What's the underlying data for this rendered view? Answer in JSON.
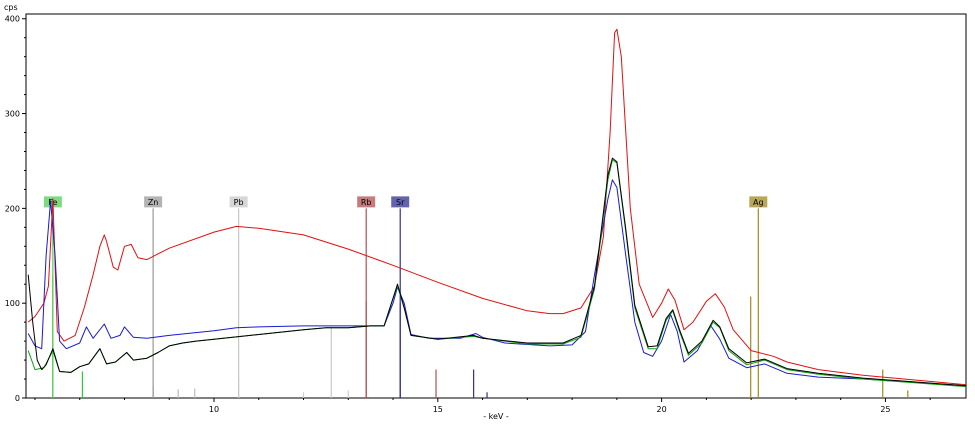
{
  "chart_data": {
    "type": "line",
    "ylabel": "cps",
    "xlabel": "- keV -",
    "xlim": [
      5.8,
      26.8
    ],
    "ylim": [
      0,
      405
    ],
    "grid": false,
    "x_ticks": [
      10,
      15,
      20,
      25
    ],
    "y_ticks": [
      0,
      100,
      200,
      300,
      400
    ],
    "series": [
      {
        "color": "#e01010",
        "points": [
          [
            5.85,
            80
          ],
          [
            6.0,
            86
          ],
          [
            6.2,
            100
          ],
          [
            6.3,
            118
          ],
          [
            6.4,
            210
          ],
          [
            6.5,
            70
          ],
          [
            6.65,
            60
          ],
          [
            6.9,
            66
          ],
          [
            7.1,
            95
          ],
          [
            7.3,
            130
          ],
          [
            7.45,
            160
          ],
          [
            7.55,
            172
          ],
          [
            7.6,
            165
          ],
          [
            7.75,
            138
          ],
          [
            7.85,
            135
          ],
          [
            8.0,
            160
          ],
          [
            8.15,
            162
          ],
          [
            8.3,
            148
          ],
          [
            8.5,
            146
          ],
          [
            9.0,
            158
          ],
          [
            10.0,
            175
          ],
          [
            10.5,
            181
          ],
          [
            11.0,
            179
          ],
          [
            12.0,
            172
          ],
          [
            13.0,
            157
          ],
          [
            14.0,
            140
          ],
          [
            15.0,
            122
          ],
          [
            16.0,
            105
          ],
          [
            17.0,
            92
          ],
          [
            17.5,
            89
          ],
          [
            17.8,
            89
          ],
          [
            18.2,
            95
          ],
          [
            18.5,
            118
          ],
          [
            18.7,
            170
          ],
          [
            18.85,
            280
          ],
          [
            18.95,
            385
          ],
          [
            19.0,
            389
          ],
          [
            19.1,
            360
          ],
          [
            19.3,
            200
          ],
          [
            19.5,
            120
          ],
          [
            19.8,
            85
          ],
          [
            20.0,
            100
          ],
          [
            20.15,
            115
          ],
          [
            20.3,
            103
          ],
          [
            20.5,
            72
          ],
          [
            20.7,
            80
          ],
          [
            21.0,
            102
          ],
          [
            21.2,
            110
          ],
          [
            21.4,
            96
          ],
          [
            21.6,
            72
          ],
          [
            22.0,
            50
          ],
          [
            22.5,
            44
          ],
          [
            22.8,
            38
          ],
          [
            23.5,
            30
          ],
          [
            24.5,
            24
          ],
          [
            26.8,
            14
          ]
        ]
      },
      {
        "color": "#1a1ad0",
        "points": [
          [
            5.85,
            68
          ],
          [
            6.0,
            55
          ],
          [
            6.15,
            52
          ],
          [
            6.25,
            150
          ],
          [
            6.35,
            208
          ],
          [
            6.45,
            150
          ],
          [
            6.55,
            60
          ],
          [
            6.7,
            52
          ],
          [
            7.0,
            58
          ],
          [
            7.15,
            75
          ],
          [
            7.3,
            63
          ],
          [
            7.55,
            78
          ],
          [
            7.7,
            63
          ],
          [
            7.9,
            66
          ],
          [
            8.0,
            75
          ],
          [
            8.2,
            64
          ],
          [
            8.5,
            63
          ],
          [
            9.0,
            66
          ],
          [
            10.0,
            71
          ],
          [
            10.5,
            74
          ],
          [
            11.0,
            75
          ],
          [
            12.0,
            76
          ],
          [
            13.0,
            76
          ],
          [
            13.5,
            76
          ],
          [
            13.8,
            76
          ],
          [
            14.0,
            100
          ],
          [
            14.1,
            117
          ],
          [
            14.25,
            100
          ],
          [
            14.4,
            67
          ],
          [
            14.8,
            63
          ],
          [
            15.5,
            63
          ],
          [
            15.85,
            68
          ],
          [
            16.0,
            64
          ],
          [
            16.5,
            58
          ],
          [
            17.5,
            55
          ],
          [
            18.0,
            56
          ],
          [
            18.3,
            70
          ],
          [
            18.5,
            130
          ],
          [
            18.8,
            210
          ],
          [
            18.9,
            230
          ],
          [
            19.0,
            222
          ],
          [
            19.2,
            150
          ],
          [
            19.4,
            80
          ],
          [
            19.6,
            48
          ],
          [
            19.8,
            44
          ],
          [
            20.0,
            60
          ],
          [
            20.2,
            88
          ],
          [
            20.35,
            70
          ],
          [
            20.5,
            38
          ],
          [
            20.8,
            50
          ],
          [
            21.1,
            76
          ],
          [
            21.3,
            62
          ],
          [
            21.5,
            42
          ],
          [
            21.9,
            32
          ],
          [
            22.3,
            36
          ],
          [
            22.8,
            26
          ],
          [
            23.5,
            22
          ],
          [
            24.5,
            20
          ],
          [
            26.8,
            13
          ]
        ]
      },
      {
        "color": "#10a010",
        "points": [
          [
            5.85,
            50
          ],
          [
            6.0,
            30
          ],
          [
            6.2,
            32
          ],
          [
            6.4,
            50
          ],
          [
            6.55,
            28
          ],
          [
            6.8,
            27
          ],
          [
            7.0,
            33
          ],
          [
            7.2,
            36
          ],
          [
            7.45,
            52
          ],
          [
            7.6,
            36
          ],
          [
            7.8,
            38
          ],
          [
            8.05,
            48
          ],
          [
            8.2,
            40
          ],
          [
            8.5,
            42
          ],
          [
            8.75,
            48
          ],
          [
            9.0,
            55
          ],
          [
            9.3,
            58
          ],
          [
            9.6,
            60
          ],
          [
            10.0,
            62
          ],
          [
            11.0,
            67
          ],
          [
            12.0,
            72
          ],
          [
            12.5,
            74
          ],
          [
            13.0,
            74
          ],
          [
            13.5,
            76
          ],
          [
            13.8,
            76
          ],
          [
            14.0,
            105
          ],
          [
            14.1,
            118
          ],
          [
            14.25,
            95
          ],
          [
            14.4,
            66
          ],
          [
            15.0,
            62
          ],
          [
            15.8,
            65
          ],
          [
            16.0,
            63
          ],
          [
            17.0,
            57
          ],
          [
            17.8,
            57
          ],
          [
            18.2,
            64
          ],
          [
            18.5,
            115
          ],
          [
            18.8,
            230
          ],
          [
            18.9,
            251
          ],
          [
            19.0,
            248
          ],
          [
            19.2,
            175
          ],
          [
            19.4,
            95
          ],
          [
            19.7,
            52
          ],
          [
            19.9,
            52
          ],
          [
            20.1,
            82
          ],
          [
            20.25,
            92
          ],
          [
            20.4,
            70
          ],
          [
            20.6,
            45
          ],
          [
            20.9,
            58
          ],
          [
            21.15,
            80
          ],
          [
            21.3,
            74
          ],
          [
            21.5,
            50
          ],
          [
            21.9,
            35
          ],
          [
            22.3,
            40
          ],
          [
            22.8,
            30
          ],
          [
            23.5,
            25
          ],
          [
            24.5,
            20
          ],
          [
            26.8,
            12
          ]
        ]
      },
      {
        "color": "#000000",
        "points": [
          [
            5.85,
            130
          ],
          [
            5.95,
            80
          ],
          [
            6.05,
            40
          ],
          [
            6.15,
            30
          ],
          [
            6.25,
            35
          ],
          [
            6.4,
            52
          ],
          [
            6.55,
            28
          ],
          [
            6.8,
            27
          ],
          [
            7.0,
            33
          ],
          [
            7.2,
            36
          ],
          [
            7.45,
            52
          ],
          [
            7.6,
            36
          ],
          [
            7.8,
            38
          ],
          [
            8.05,
            48
          ],
          [
            8.2,
            40
          ],
          [
            8.5,
            42
          ],
          [
            8.75,
            48
          ],
          [
            9.0,
            55
          ],
          [
            9.3,
            58
          ],
          [
            9.6,
            60
          ],
          [
            10.0,
            62
          ],
          [
            11.0,
            67
          ],
          [
            12.0,
            72
          ],
          [
            12.5,
            74
          ],
          [
            13.0,
            74
          ],
          [
            13.5,
            76
          ],
          [
            13.8,
            76
          ],
          [
            14.0,
            105
          ],
          [
            14.1,
            120
          ],
          [
            14.25,
            95
          ],
          [
            14.4,
            66
          ],
          [
            15.0,
            62
          ],
          [
            15.8,
            66
          ],
          [
            16.0,
            63
          ],
          [
            17.0,
            58
          ],
          [
            17.8,
            58
          ],
          [
            18.2,
            66
          ],
          [
            18.5,
            118
          ],
          [
            18.8,
            235
          ],
          [
            18.9,
            253
          ],
          [
            19.0,
            249
          ],
          [
            19.2,
            178
          ],
          [
            19.4,
            98
          ],
          [
            19.7,
            54
          ],
          [
            19.9,
            55
          ],
          [
            20.1,
            84
          ],
          [
            20.25,
            93
          ],
          [
            20.4,
            72
          ],
          [
            20.6,
            47
          ],
          [
            20.9,
            60
          ],
          [
            21.15,
            82
          ],
          [
            21.3,
            75
          ],
          [
            21.5,
            52
          ],
          [
            21.9,
            37
          ],
          [
            22.3,
            41
          ],
          [
            22.8,
            31
          ],
          [
            23.5,
            26
          ],
          [
            24.5,
            21
          ],
          [
            26.8,
            13
          ]
        ]
      }
    ],
    "element_markers": [
      {
        "label": "Fe",
        "x": 6.4,
        "color": "#55cc55",
        "line_height": 200
      },
      {
        "label": "Zn",
        "x": 8.64,
        "color": "#999999",
        "line_height": 200
      },
      {
        "label": "Pb",
        "x": 10.55,
        "color": "#c8c8c8",
        "line_height": 200
      },
      {
        "label": "Rb",
        "x": 13.4,
        "color": "#b05050",
        "line_height": 200
      },
      {
        "label": "Sr",
        "x": 14.16,
        "color": "#303090",
        "line_height": 200
      },
      {
        "label": "Ag",
        "x": 22.16,
        "color": "#a08a20",
        "line_height": 200
      }
    ],
    "stick_lines": [
      {
        "x": 6.4,
        "y": 130,
        "color": "#33cc33"
      },
      {
        "x": 7.06,
        "y": 28,
        "color": "#33cc33"
      },
      {
        "x": 8.64,
        "y": 12,
        "color": "#999999"
      },
      {
        "x": 9.57,
        "y": 10,
        "color": "#bbbbbb"
      },
      {
        "x": 9.2,
        "y": 9,
        "color": "#bbbbbb"
      },
      {
        "x": 10.55,
        "y": 22,
        "color": "#c8c8c8"
      },
      {
        "x": 12.62,
        "y": 75,
        "color": "#c8c8c8"
      },
      {
        "x": 12.0,
        "y": 6,
        "color": "#cccccc"
      },
      {
        "x": 13.0,
        "y": 8,
        "color": "#cccccc"
      },
      {
        "x": 13.4,
        "y": 102,
        "color": "#b05050"
      },
      {
        "x": 14.16,
        "y": 100,
        "color": "#303090"
      },
      {
        "x": 14.96,
        "y": 30,
        "color": "#b05050"
      },
      {
        "x": 15.8,
        "y": 30,
        "color": "#303090"
      },
      {
        "x": 16.1,
        "y": 6,
        "color": "#303090"
      },
      {
        "x": 21.99,
        "y": 107,
        "color": "#a08a20"
      },
      {
        "x": 24.94,
        "y": 30,
        "color": "#a08a20"
      },
      {
        "x": 25.5,
        "y": 8,
        "color": "#a08a20"
      }
    ]
  }
}
